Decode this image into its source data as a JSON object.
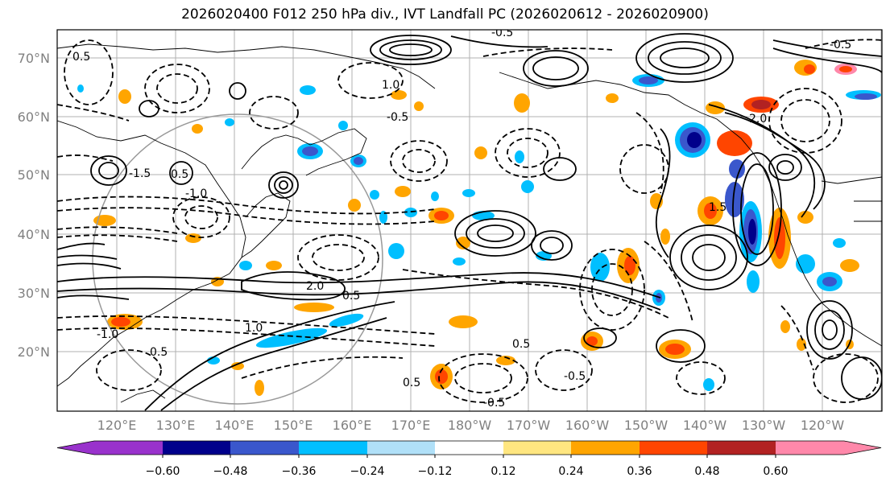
{
  "title": "2026020400 F012 250 hPa div., IVT Landfall PC (2026020612 - 2026020900)",
  "map": {
    "lat_labels": [
      "70°N",
      "60°N",
      "50°N",
      "40°N",
      "30°N",
      "20°N"
    ],
    "lon_labels": [
      "120°E",
      "130°E",
      "140°E",
      "150°E",
      "160°E",
      "170°E",
      "180°W",
      "170°W",
      "160°W",
      "150°W",
      "140°W",
      "130°W",
      "120°W"
    ],
    "contour_labels": [
      "0.5",
      "-0.5",
      "1.0",
      "-1.0",
      "1.5",
      "2.0",
      "-1.5",
      "0.5",
      "-0.5",
      "0.5",
      "-0.5",
      "1.0",
      "2.0",
      "0.5",
      "-0.5",
      "0.5",
      "-1.0",
      "0.5",
      "-0.5"
    ],
    "colors": {
      "positive_contour": "#000000",
      "negative_contour": "#000000",
      "grid": "#b0b0b0",
      "coast": "#000000",
      "circle": "#999999"
    }
  },
  "colorbar": {
    "ticks": [
      "−0.60",
      "−0.48",
      "−0.36",
      "−0.24",
      "−0.12",
      "0.12",
      "0.24",
      "0.36",
      "0.48",
      "0.60"
    ],
    "colors": [
      "#9932cc",
      "#00008b",
      "#3a57cc",
      "#00bfff",
      "#b0e0f8",
      "#ffffff",
      "#ffe680",
      "#ffa500",
      "#ff4500",
      "#b22222",
      "#ff88aa"
    ]
  }
}
